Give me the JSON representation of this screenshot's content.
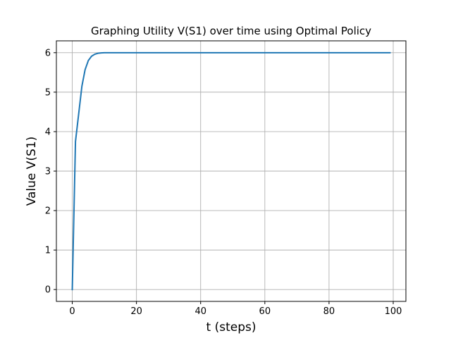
{
  "chart_data": {
    "type": "line",
    "title": "Graphing Utility V(S1) over time using Optimal Policy",
    "xlabel": "t (steps)",
    "ylabel": "Value V(S1)",
    "xlim": [
      -4.95,
      103.95
    ],
    "ylim": [
      -0.3,
      6.3
    ],
    "xticks": [
      0,
      20,
      40,
      60,
      80,
      100
    ],
    "yticks": [
      0,
      1,
      2,
      3,
      4,
      5,
      6
    ],
    "grid": true,
    "color": "#1f77b4",
    "series": [
      {
        "x": [
          0,
          1,
          2,
          3,
          4,
          5,
          6,
          7,
          8,
          9,
          10,
          11,
          12,
          13,
          14,
          15,
          20,
          30,
          40,
          50,
          60,
          70,
          80,
          90,
          99
        ],
        "y": [
          0,
          3.75,
          4.45,
          5.15,
          5.57,
          5.8,
          5.91,
          5.96,
          5.985,
          5.995,
          5.999,
          6.0,
          6.0,
          6.0,
          6.0,
          6.0,
          6.0,
          6.0,
          6.0,
          6.0,
          6.0,
          6.0,
          6.0,
          6.0,
          6.0
        ]
      }
    ]
  }
}
